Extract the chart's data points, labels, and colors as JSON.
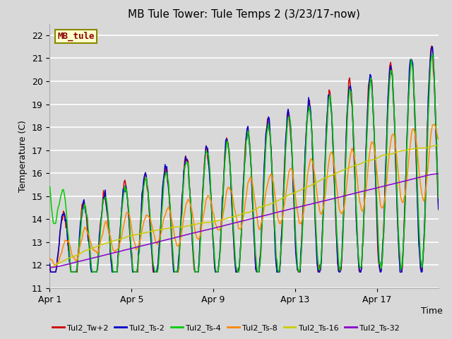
{
  "title": "MB Tule Tower: Tule Temps 2 (3/23/17-now)",
  "xlabel": "Time",
  "ylabel": "Temperature (C)",
  "ylim": [
    11.0,
    22.5
  ],
  "yticks": [
    11.0,
    12.0,
    13.0,
    14.0,
    15.0,
    16.0,
    17.0,
    18.0,
    19.0,
    20.0,
    21.0,
    22.0
  ],
  "bg_color": "#d8d8d8",
  "plot_bg_color": "#d8d8d8",
  "grid_color": "#ffffff",
  "series_colors": {
    "Tul2_Tw+2": "#cc0000",
    "Tul2_Ts-2": "#0000cc",
    "Tul2_Ts-4": "#00cc00",
    "Tul2_Ts-8": "#ff8800",
    "Tul2_Ts-16": "#cccc00",
    "Tul2_Ts-32": "#8800cc"
  },
  "xtick_labels": [
    "Apr 1",
    "Apr 5",
    "Apr 9",
    "Apr 13",
    "Apr 17"
  ],
  "xtick_positions": [
    0,
    4,
    8,
    12,
    16
  ],
  "legend_label_box": "MB_tule",
  "legend_box_color": "#ffffcc",
  "legend_box_edge": "#888800",
  "legend_text_color": "#880000",
  "n_days": 19
}
